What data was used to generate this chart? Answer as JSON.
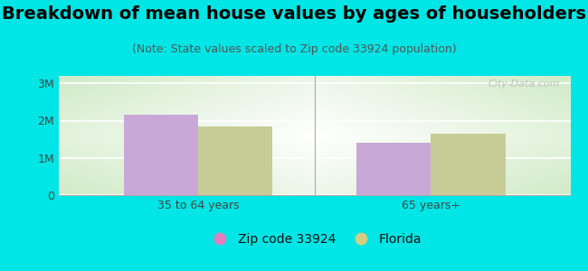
{
  "title": "Breakdown of mean house values by ages of householders",
  "subtitle": "(Note: State values scaled to Zip code 33924 population)",
  "groups": [
    "35 to 64 years",
    "65 years+"
  ],
  "series": [
    {
      "label": "Zip code 33924",
      "color": "#c9a8d8",
      "values": [
        2150000,
        1400000
      ]
    },
    {
      "label": "Florida",
      "color": "#c8cc96",
      "values": [
        1850000,
        1650000
      ]
    }
  ],
  "yticks": [
    0,
    1000000,
    2000000,
    3000000
  ],
  "ytick_labels": [
    "0",
    "1M",
    "2M",
    "3M"
  ],
  "ylim": [
    0,
    3200000
  ],
  "bar_width": 0.32,
  "background_color": "#00e5e5",
  "plot_bg_gradient_center": "#ffffff",
  "plot_bg_gradient_edge": "#d0e8c8",
  "title_fontsize": 14,
  "subtitle_fontsize": 9,
  "tick_fontsize": 9,
  "legend_fontsize": 10,
  "watermark": "City-Data.com",
  "legend_colors": [
    "#e080c0",
    "#d4cc80"
  ]
}
